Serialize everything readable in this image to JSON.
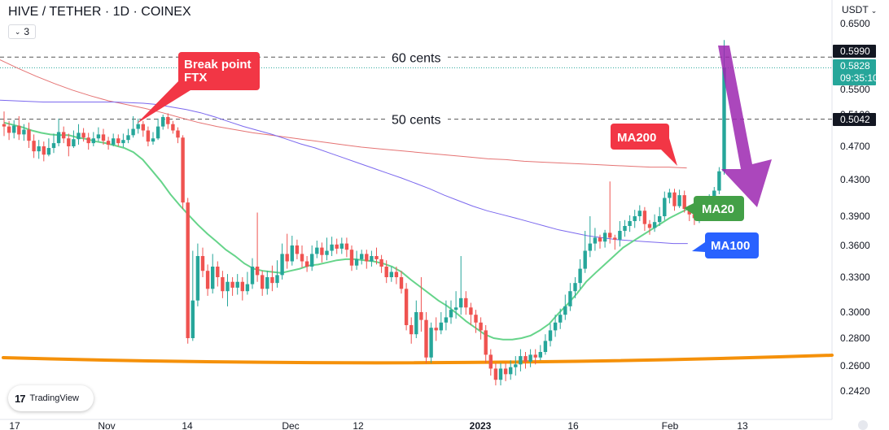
{
  "header": {
    "title": "HIVE / TETHER · 1D · COINEX",
    "interval_count": "3",
    "currency": "USDT"
  },
  "logo": {
    "text": "TradingView",
    "mark": "17"
  },
  "chart_data": {
    "type": "candlestick",
    "x_labels": [
      "17",
      "Nov",
      "14",
      "Dec",
      "12",
      "2023",
      "16",
      "Feb",
      "13"
    ],
    "y_ticks": [
      "0.6500",
      "0.5500",
      "0.5100",
      "0.4700",
      "0.4300",
      "0.3900",
      "0.3600",
      "0.3300",
      "0.3000",
      "0.2800",
      "0.2600",
      "0.2420"
    ],
    "y_tick_values": [
      0.65,
      0.55,
      0.51,
      0.47,
      0.43,
      0.39,
      0.36,
      0.33,
      0.3,
      0.28,
      0.26,
      0.242
    ],
    "price_labels": [
      {
        "name": "60-cents-tag",
        "value": "0.5990",
        "style": "dark"
      },
      {
        "name": "current-price-tag",
        "value": "0.5828",
        "countdown": "09:35:10",
        "style": "green"
      },
      {
        "name": "50-cents-tag",
        "value": "0.5042",
        "style": "dark"
      }
    ],
    "horizontal_lines": [
      {
        "label": "60 cents",
        "value": 0.599
      },
      {
        "label": "50 cents",
        "value": 0.5042
      }
    ],
    "moving_averages": [
      {
        "name": "MA200",
        "color": "#e57373"
      },
      {
        "name": "MA100",
        "color": "#7b68ee"
      },
      {
        "name": "MA20",
        "color": "#66d48a"
      }
    ],
    "callouts": [
      {
        "text_line1": "Break point",
        "text_line2": "FTX",
        "color": "#f23645"
      },
      {
        "text": "MA200",
        "color": "#f23645"
      },
      {
        "text": "MA20",
        "color": "#43a047"
      },
      {
        "text": "MA100",
        "color": "#2962ff"
      }
    ],
    "support_line_color": "#f5910a",
    "arrow_color": "#9c27b0",
    "up_color": "#26a69a",
    "down_color": "#ef5350",
    "candles": [
      [
        0.498,
        0.495,
        0.515,
        0.483
      ],
      [
        0.495,
        0.487,
        0.502,
        0.478
      ],
      [
        0.487,
        0.496,
        0.503,
        0.48
      ],
      [
        0.496,
        0.485,
        0.508,
        0.478
      ],
      [
        0.485,
        0.491,
        0.498,
        0.477
      ],
      [
        0.491,
        0.477,
        0.5,
        0.468
      ],
      [
        0.477,
        0.464,
        0.485,
        0.456
      ],
      [
        0.464,
        0.47,
        0.478,
        0.455
      ],
      [
        0.47,
        0.46,
        0.476,
        0.452
      ],
      [
        0.46,
        0.468,
        0.48,
        0.458
      ],
      [
        0.468,
        0.474,
        0.486,
        0.462
      ],
      [
        0.474,
        0.488,
        0.505,
        0.47
      ],
      [
        0.488,
        0.48,
        0.495,
        0.474
      ],
      [
        0.48,
        0.47,
        0.486,
        0.458
      ],
      [
        0.47,
        0.479,
        0.49,
        0.468
      ],
      [
        0.479,
        0.487,
        0.498,
        0.472
      ],
      [
        0.487,
        0.481,
        0.493,
        0.476
      ],
      [
        0.481,
        0.474,
        0.487,
        0.466
      ],
      [
        0.474,
        0.48,
        0.488,
        0.47
      ],
      [
        0.48,
        0.485,
        0.494,
        0.476
      ],
      [
        0.485,
        0.477,
        0.492,
        0.472
      ],
      [
        0.477,
        0.472,
        0.482,
        0.466
      ],
      [
        0.472,
        0.48,
        0.486,
        0.47
      ],
      [
        0.48,
        0.474,
        0.485,
        0.47
      ],
      [
        0.474,
        0.478,
        0.486,
        0.469
      ],
      [
        0.478,
        0.484,
        0.492,
        0.474
      ],
      [
        0.484,
        0.492,
        0.508,
        0.481
      ],
      [
        0.492,
        0.498,
        0.505,
        0.486
      ],
      [
        0.498,
        0.49,
        0.502,
        0.482
      ],
      [
        0.49,
        0.476,
        0.495,
        0.47
      ],
      [
        0.476,
        0.48,
        0.488,
        0.472
      ],
      [
        0.48,
        0.495,
        0.505,
        0.478
      ],
      [
        0.495,
        0.507,
        0.51,
        0.491
      ],
      [
        0.507,
        0.498,
        0.512,
        0.492
      ],
      [
        0.498,
        0.49,
        0.502,
        0.486
      ],
      [
        0.49,
        0.481,
        0.494,
        0.474
      ],
      [
        0.481,
        0.405,
        0.484,
        0.398
      ],
      [
        0.405,
        0.28,
        0.41,
        0.276
      ],
      [
        0.28,
        0.31,
        0.355,
        0.278
      ],
      [
        0.31,
        0.35,
        0.362,
        0.305
      ],
      [
        0.35,
        0.336,
        0.358,
        0.33
      ],
      [
        0.336,
        0.32,
        0.342,
        0.314
      ],
      [
        0.32,
        0.34,
        0.352,
        0.316
      ],
      [
        0.34,
        0.33,
        0.345,
        0.322
      ],
      [
        0.33,
        0.318,
        0.336,
        0.312
      ],
      [
        0.318,
        0.326,
        0.333,
        0.305
      ],
      [
        0.326,
        0.321,
        0.33,
        0.314
      ],
      [
        0.321,
        0.326,
        0.333,
        0.315
      ],
      [
        0.326,
        0.318,
        0.33,
        0.31
      ],
      [
        0.318,
        0.324,
        0.335,
        0.315
      ],
      [
        0.324,
        0.34,
        0.348,
        0.32
      ],
      [
        0.34,
        0.332,
        0.394,
        0.326
      ],
      [
        0.332,
        0.32,
        0.336,
        0.314
      ],
      [
        0.32,
        0.33,
        0.336,
        0.315
      ],
      [
        0.33,
        0.325,
        0.341,
        0.318
      ],
      [
        0.325,
        0.332,
        0.346,
        0.321
      ],
      [
        0.332,
        0.352,
        0.362,
        0.328
      ],
      [
        0.352,
        0.345,
        0.372,
        0.338
      ],
      [
        0.345,
        0.36,
        0.37,
        0.341
      ],
      [
        0.36,
        0.352,
        0.366,
        0.347
      ],
      [
        0.352,
        0.345,
        0.36,
        0.339
      ],
      [
        0.345,
        0.34,
        0.35,
        0.335
      ],
      [
        0.34,
        0.352,
        0.36,
        0.336
      ],
      [
        0.352,
        0.358,
        0.365,
        0.348
      ],
      [
        0.358,
        0.351,
        0.363,
        0.344
      ],
      [
        0.351,
        0.355,
        0.368,
        0.346
      ],
      [
        0.355,
        0.361,
        0.369,
        0.35
      ],
      [
        0.361,
        0.357,
        0.367,
        0.352
      ],
      [
        0.357,
        0.362,
        0.368,
        0.352
      ],
      [
        0.362,
        0.356,
        0.368,
        0.349
      ],
      [
        0.356,
        0.341,
        0.36,
        0.336
      ],
      [
        0.341,
        0.347,
        0.355,
        0.337
      ],
      [
        0.347,
        0.352,
        0.356,
        0.342
      ],
      [
        0.352,
        0.345,
        0.356,
        0.338
      ],
      [
        0.345,
        0.35,
        0.355,
        0.34
      ],
      [
        0.35,
        0.347,
        0.358,
        0.342
      ],
      [
        0.347,
        0.34,
        0.351,
        0.334
      ],
      [
        0.34,
        0.33,
        0.346,
        0.325
      ],
      [
        0.33,
        0.335,
        0.34,
        0.326
      ],
      [
        0.335,
        0.33,
        0.34,
        0.324
      ],
      [
        0.33,
        0.32,
        0.336,
        0.316
      ],
      [
        0.32,
        0.29,
        0.325,
        0.286
      ],
      [
        0.29,
        0.283,
        0.296,
        0.276
      ],
      [
        0.283,
        0.3,
        0.31,
        0.28
      ],
      [
        0.3,
        0.294,
        0.33,
        0.285
      ],
      [
        0.294,
        0.266,
        0.3,
        0.262
      ],
      [
        0.266,
        0.288,
        0.292,
        0.262
      ],
      [
        0.288,
        0.286,
        0.296,
        0.278
      ],
      [
        0.286,
        0.292,
        0.3,
        0.283
      ],
      [
        0.292,
        0.296,
        0.31,
        0.286
      ],
      [
        0.296,
        0.302,
        0.31,
        0.291
      ],
      [
        0.302,
        0.304,
        0.318,
        0.295
      ],
      [
        0.304,
        0.312,
        0.35,
        0.298
      ],
      [
        0.312,
        0.304,
        0.318,
        0.298
      ],
      [
        0.304,
        0.298,
        0.308,
        0.29
      ],
      [
        0.298,
        0.292,
        0.302,
        0.284
      ],
      [
        0.292,
        0.286,
        0.296,
        0.279
      ],
      [
        0.286,
        0.268,
        0.29,
        0.262
      ],
      [
        0.268,
        0.258,
        0.272,
        0.253
      ],
      [
        0.258,
        0.25,
        0.262,
        0.246
      ],
      [
        0.25,
        0.258,
        0.262,
        0.246
      ],
      [
        0.258,
        0.254,
        0.262,
        0.249
      ],
      [
        0.254,
        0.259,
        0.264,
        0.25
      ],
      [
        0.259,
        0.261,
        0.267,
        0.253
      ],
      [
        0.261,
        0.267,
        0.272,
        0.256
      ],
      [
        0.267,
        0.263,
        0.27,
        0.258
      ],
      [
        0.263,
        0.268,
        0.272,
        0.259
      ],
      [
        0.268,
        0.266,
        0.272,
        0.261
      ],
      [
        0.266,
        0.27,
        0.275,
        0.264
      ],
      [
        0.27,
        0.278,
        0.283,
        0.268
      ],
      [
        0.278,
        0.286,
        0.291,
        0.274
      ],
      [
        0.286,
        0.292,
        0.298,
        0.281
      ],
      [
        0.292,
        0.298,
        0.303,
        0.287
      ],
      [
        0.298,
        0.305,
        0.315,
        0.294
      ],
      [
        0.305,
        0.318,
        0.325,
        0.301
      ],
      [
        0.318,
        0.325,
        0.33,
        0.312
      ],
      [
        0.325,
        0.338,
        0.347,
        0.32
      ],
      [
        0.338,
        0.355,
        0.375,
        0.334
      ],
      [
        0.355,
        0.362,
        0.39,
        0.349
      ],
      [
        0.362,
        0.368,
        0.378,
        0.355
      ],
      [
        0.368,
        0.364,
        0.371,
        0.357
      ],
      [
        0.364,
        0.373,
        0.376,
        0.358
      ],
      [
        0.373,
        0.368,
        0.428,
        0.362
      ],
      [
        0.368,
        0.366,
        0.371,
        0.356
      ],
      [
        0.366,
        0.375,
        0.385,
        0.359
      ],
      [
        0.375,
        0.38,
        0.386,
        0.369
      ],
      [
        0.38,
        0.385,
        0.391,
        0.374
      ],
      [
        0.385,
        0.39,
        0.397,
        0.378
      ],
      [
        0.39,
        0.396,
        0.402,
        0.385
      ],
      [
        0.396,
        0.382,
        0.4,
        0.375
      ],
      [
        0.382,
        0.378,
        0.386,
        0.371
      ],
      [
        0.378,
        0.384,
        0.392,
        0.374
      ],
      [
        0.384,
        0.39,
        0.4,
        0.38
      ],
      [
        0.39,
        0.41,
        0.417,
        0.386
      ],
      [
        0.41,
        0.416,
        0.42,
        0.404
      ],
      [
        0.416,
        0.401,
        0.42,
        0.396
      ],
      [
        0.401,
        0.413,
        0.419,
        0.399
      ],
      [
        0.413,
        0.398,
        0.418,
        0.394
      ],
      [
        0.398,
        0.392,
        0.402,
        0.385
      ],
      [
        0.392,
        0.388,
        0.397,
        0.381
      ],
      [
        0.388,
        0.396,
        0.402,
        0.383
      ],
      [
        0.396,
        0.401,
        0.407,
        0.39
      ],
      [
        0.401,
        0.41,
        0.414,
        0.396
      ],
      [
        0.41,
        0.418,
        0.422,
        0.404
      ],
      [
        0.418,
        0.44,
        0.445,
        0.414
      ],
      [
        0.44,
        0.5828,
        0.625,
        0.436
      ]
    ],
    "ma20": [
      0.5,
      0.497,
      0.494,
      0.49,
      0.487,
      0.485,
      0.484,
      0.484,
      0.481,
      0.479,
      0.476,
      0.474,
      0.471,
      0.468,
      0.463,
      0.454,
      0.441,
      0.428,
      0.414,
      0.402,
      0.391,
      0.381,
      0.372,
      0.364,
      0.356,
      0.35,
      0.343,
      0.338,
      0.336,
      0.335,
      0.334,
      0.336,
      0.338,
      0.341,
      0.342,
      0.344,
      0.346,
      0.347,
      0.347,
      0.346,
      0.345,
      0.343,
      0.34,
      0.335,
      0.328,
      0.322,
      0.316,
      0.31,
      0.305,
      0.299,
      0.293,
      0.288,
      0.283,
      0.28,
      0.279,
      0.279,
      0.28,
      0.282,
      0.286,
      0.291,
      0.299,
      0.307,
      0.316,
      0.326,
      0.334,
      0.342,
      0.35,
      0.358,
      0.364,
      0.37,
      0.376,
      0.382,
      0.388,
      0.393,
      0.398
    ],
    "ma100": [
      0.533,
      0.532,
      0.531,
      0.53,
      0.53,
      0.53,
      0.53,
      0.53,
      0.53,
      0.529,
      0.528,
      0.526,
      0.522,
      0.518,
      0.513,
      0.507,
      0.501,
      0.495,
      0.49,
      0.485,
      0.479,
      0.473,
      0.468,
      0.462,
      0.456,
      0.45,
      0.444,
      0.438,
      0.432,
      0.426,
      0.42,
      0.413,
      0.407,
      0.401,
      0.396,
      0.392,
      0.388,
      0.384,
      0.38,
      0.376,
      0.373,
      0.37,
      0.368,
      0.366,
      0.365,
      0.364,
      0.363,
      0.362,
      0.362
    ],
    "ma200": [
      0.595,
      0.582,
      0.57,
      0.559,
      0.549,
      0.54,
      0.532,
      0.526,
      0.52,
      0.513,
      0.506,
      0.5,
      0.495,
      0.491,
      0.487,
      0.484,
      0.481,
      0.478,
      0.475,
      0.472,
      0.469,
      0.467,
      0.465,
      0.463,
      0.461,
      0.459,
      0.457,
      0.455,
      0.454,
      0.452,
      0.451,
      0.45,
      0.449,
      0.448,
      0.447,
      0.446,
      0.445,
      0.445,
      0.444
    ]
  }
}
